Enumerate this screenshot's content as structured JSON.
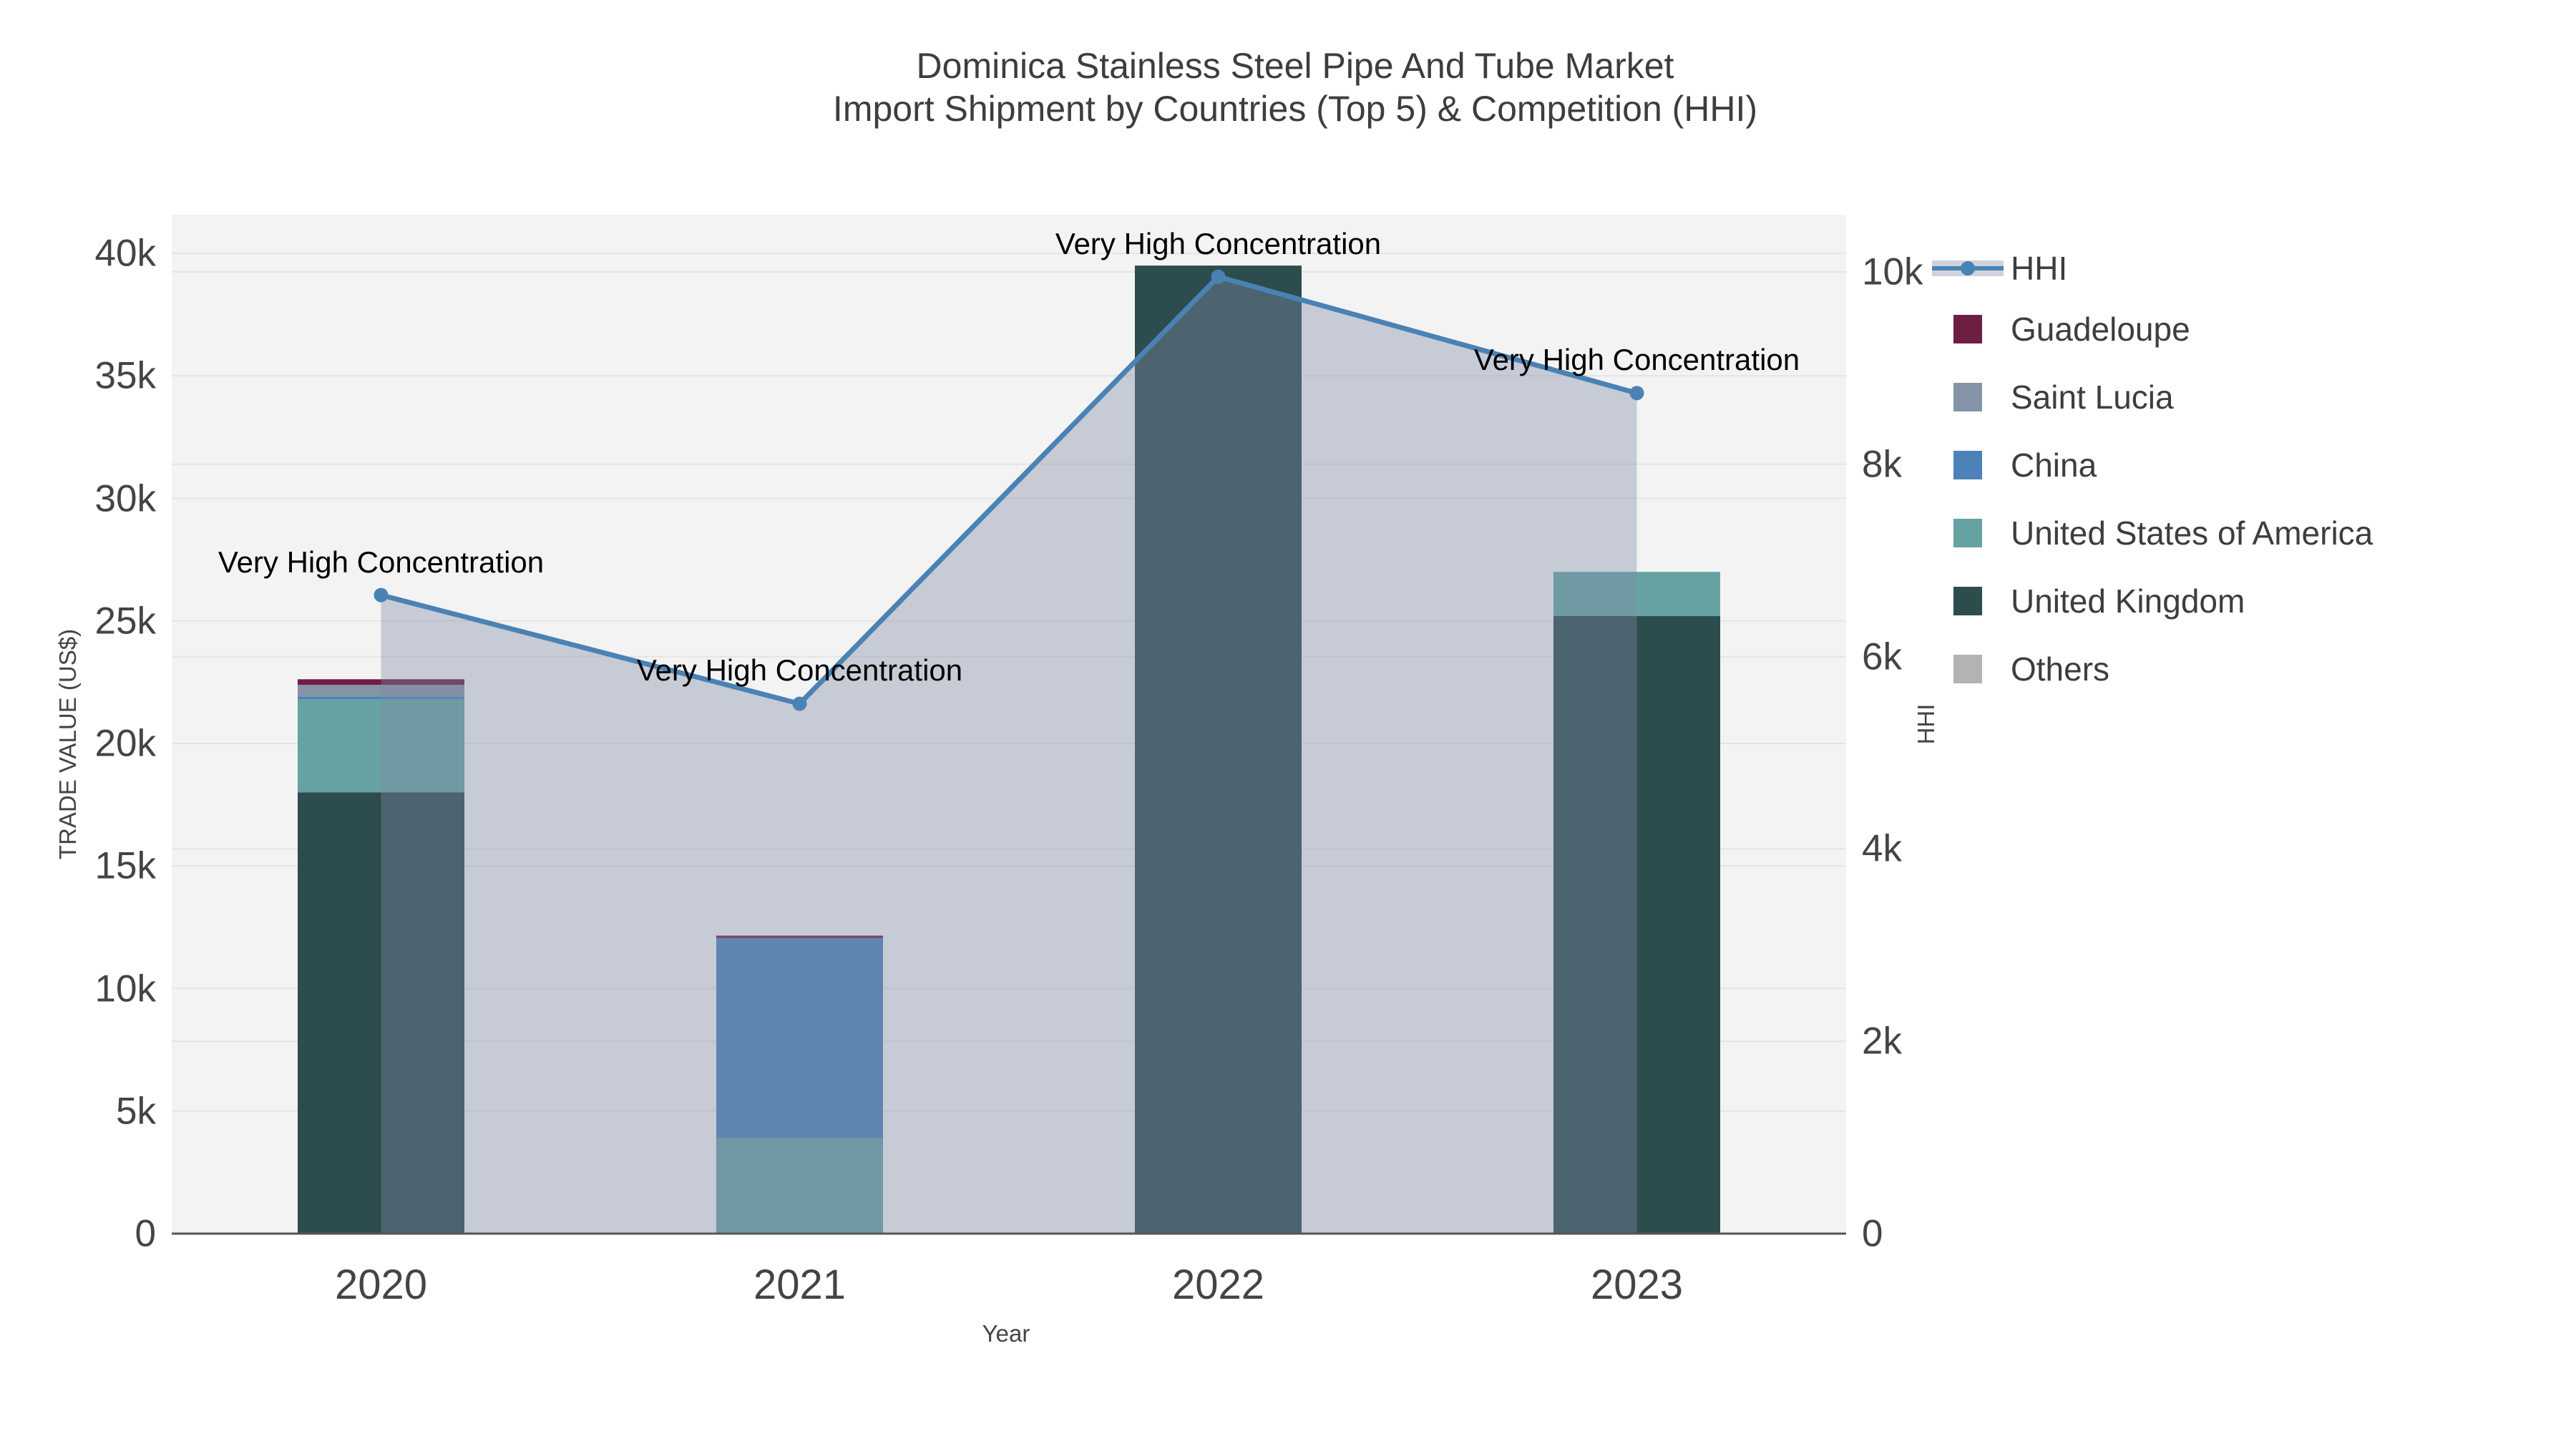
{
  "title": {
    "line1": "Dominica Stainless Steel Pipe And Tube Market",
    "line2": "Import Shipment by Countries (Top 5) & Competition (HHI)"
  },
  "axes": {
    "x": {
      "title": "Year",
      "tick_labels": [
        "2020",
        "2021",
        "2022",
        "2023"
      ]
    },
    "y_left": {
      "title": "TRADE VALUE (US$)",
      "tick_labels": [
        "0",
        "5k",
        "10k",
        "15k",
        "20k",
        "25k",
        "30k",
        "35k",
        "40k"
      ],
      "tick_values": [
        0,
        5000,
        10000,
        15000,
        20000,
        25000,
        30000,
        35000,
        40000
      ],
      "range": [
        0,
        40000
      ]
    },
    "y_right": {
      "title": "HHI",
      "tick_labels": [
        "0",
        "2k",
        "4k",
        "6k",
        "8k",
        "10k"
      ],
      "tick_values": [
        0,
        2000,
        4000,
        6000,
        8000,
        10000
      ],
      "range": [
        0,
        10000
      ]
    }
  },
  "annotations": [
    {
      "year": "2020",
      "text": "Very High Concentration"
    },
    {
      "year": "2021",
      "text": "Very High Concentration"
    },
    {
      "year": "2022",
      "text": "Very High Concentration"
    },
    {
      "year": "2023",
      "text": "Very High Concentration"
    }
  ],
  "colors": {
    "plot_background": "#f3f3f3",
    "gridline": "#e4e4e4",
    "axis_line": "#555555",
    "axis_text": "#444444",
    "title_text": "#3d3d3d",
    "annotation_text": "#000000",
    "hhi_line": "#4a82b4",
    "hhi_fill": "rgba(125,140,165,0.38)",
    "guadeloupe": "#6e1e41",
    "saint_lucia": "#8593a7",
    "china": "#4d82b8",
    "usa": "#66a2a2",
    "uk": "#2d4c4e",
    "others": "#b3b3b3"
  },
  "chart_data": {
    "type": "bar",
    "subtype": "stacked-bars-with-line-overlay",
    "categories": [
      "2020",
      "2021",
      "2022",
      "2023"
    ],
    "bar_axis": "left",
    "bar_stack_order_bottom_to_top": [
      "Others",
      "United Kingdom",
      "United States of America",
      "China",
      "Saint Lucia",
      "Guadeloupe"
    ],
    "series": [
      {
        "name": "Guadeloupe",
        "color_key": "guadeloupe",
        "values": [
          230,
          100,
          0,
          0
        ]
      },
      {
        "name": "Saint Lucia",
        "color_key": "saint_lucia",
        "values": [
          470,
          0,
          0,
          0
        ]
      },
      {
        "name": "China",
        "color_key": "china",
        "values": [
          120,
          8160,
          0,
          0
        ]
      },
      {
        "name": "United States of America",
        "color_key": "usa",
        "values": [
          3800,
          3900,
          0,
          1800
        ]
      },
      {
        "name": "United Kingdom",
        "color_key": "uk",
        "values": [
          18000,
          0,
          39500,
          25200
        ]
      },
      {
        "name": "Others",
        "color_key": "others",
        "values": [
          0,
          0,
          0,
          0
        ]
      }
    ],
    "line_series": {
      "name": "HHI",
      "axis": "right",
      "values": [
        6640,
        5510,
        9950,
        8740
      ],
      "has_area_fill": true,
      "has_markers": true
    },
    "title": "Dominica Stainless Steel Pipe And Tube Market Import Shipment by Countries (Top 5) & Competition (HHI)",
    "xlabel": "Year",
    "ylabel_left": "TRADE VALUE (US$)",
    "ylabel_right": "HHI",
    "ylim_left": [
      0,
      40000
    ],
    "ylim_right": [
      0,
      10000
    ],
    "grid": true,
    "legend_position": "right",
    "legend_entries": [
      "HHI",
      "Guadeloupe",
      "Saint Lucia",
      "China",
      "United States of America",
      "United Kingdom",
      "Others"
    ]
  }
}
